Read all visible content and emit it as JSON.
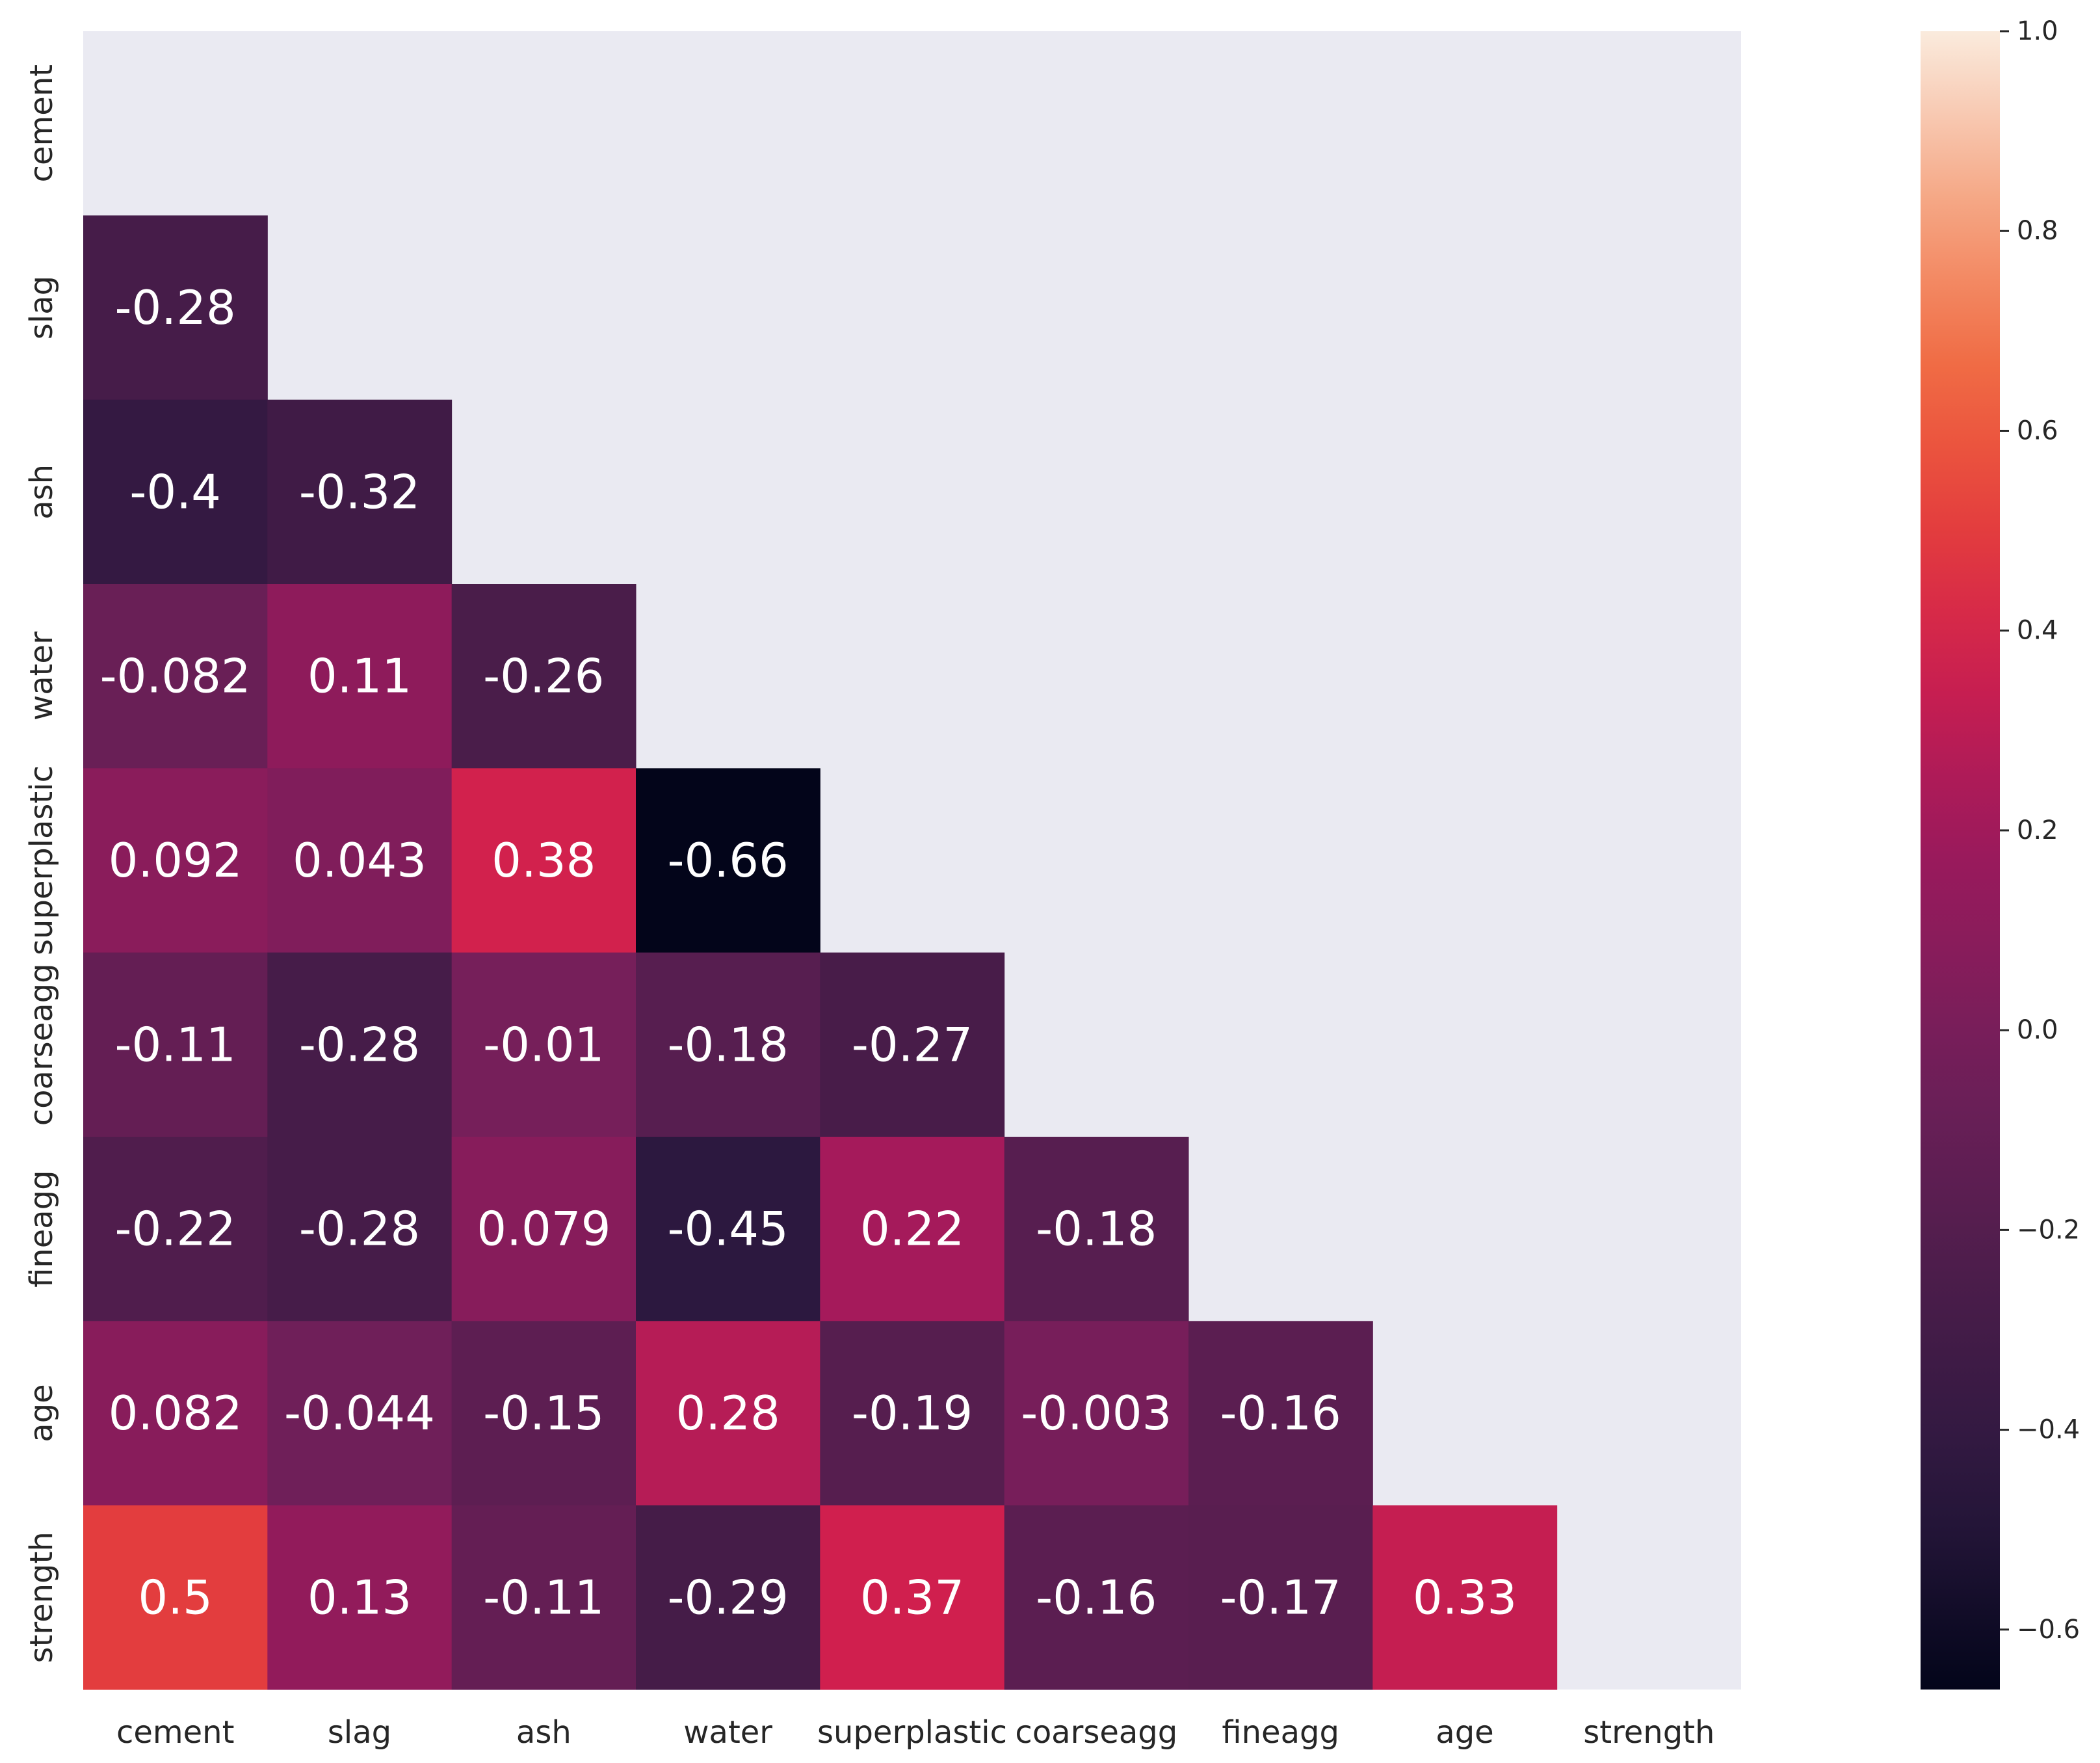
{
  "chart_data": {
    "type": "heatmap",
    "title": "",
    "xlabel": "",
    "ylabel": "",
    "mask": "upper-triangle-including-diagonal",
    "categories": [
      "cement",
      "slag",
      "ash",
      "water",
      "superplastic",
      "coarseagg",
      "fineagg",
      "age",
      "strength"
    ],
    "rows": [
      [
        null,
        null,
        null,
        null,
        null,
        null,
        null,
        null,
        null
      ],
      [
        -0.28,
        null,
        null,
        null,
        null,
        null,
        null,
        null,
        null
      ],
      [
        -0.4,
        -0.32,
        null,
        null,
        null,
        null,
        null,
        null,
        null
      ],
      [
        -0.082,
        0.11,
        -0.26,
        null,
        null,
        null,
        null,
        null,
        null
      ],
      [
        0.092,
        0.043,
        0.38,
        -0.66,
        null,
        null,
        null,
        null,
        null
      ],
      [
        -0.11,
        -0.28,
        -0.01,
        -0.18,
        -0.27,
        null,
        null,
        null,
        null
      ],
      [
        -0.22,
        -0.28,
        0.079,
        -0.45,
        0.22,
        -0.18,
        null,
        null,
        null
      ],
      [
        0.082,
        -0.044,
        -0.15,
        0.28,
        -0.19,
        -0.003,
        -0.16,
        null,
        null
      ],
      [
        0.5,
        0.13,
        -0.11,
        -0.29,
        0.37,
        -0.16,
        -0.17,
        0.33,
        null
      ]
    ],
    "cell_labels": [
      [
        null,
        null,
        null,
        null,
        null,
        null,
        null,
        null,
        null
      ],
      [
        "-0.28",
        null,
        null,
        null,
        null,
        null,
        null,
        null,
        null
      ],
      [
        "-0.4",
        "-0.32",
        null,
        null,
        null,
        null,
        null,
        null,
        null
      ],
      [
        "-0.082",
        "0.11",
        "-0.26",
        null,
        null,
        null,
        null,
        null,
        null
      ],
      [
        "0.092",
        "0.043",
        "0.38",
        "-0.66",
        null,
        null,
        null,
        null,
        null
      ],
      [
        "-0.11",
        "-0.28",
        "-0.01",
        "-0.18",
        "-0.27",
        null,
        null,
        null,
        null
      ],
      [
        "-0.22",
        "-0.28",
        "0.079",
        "-0.45",
        "0.22",
        "-0.18",
        null,
        null,
        null
      ],
      [
        "0.082",
        "-0.044",
        "-0.15",
        "0.28",
        "-0.19",
        "-0.003",
        "-0.16",
        null,
        null
      ],
      [
        "0.5",
        "0.13",
        "-0.11",
        "-0.29",
        "0.37",
        "-0.16",
        "-0.17",
        "0.33",
        null
      ]
    ],
    "colorbar": {
      "colormap": "rocket",
      "vmin": -0.66,
      "vmax": 1.0,
      "ticks": [
        1.0,
        0.8,
        0.6,
        0.4,
        0.2,
        0.0,
        -0.2,
        -0.4,
        -0.6
      ],
      "tick_labels": [
        "1.0",
        "0.8",
        "0.6",
        "0.4",
        "0.2",
        "0.0",
        "−0.2",
        "−0.4",
        "−0.6"
      ]
    },
    "colors": {
      "masked_background": "#eaeaf2",
      "label_light": "#ffffff",
      "label_dark": "#262626"
    }
  }
}
